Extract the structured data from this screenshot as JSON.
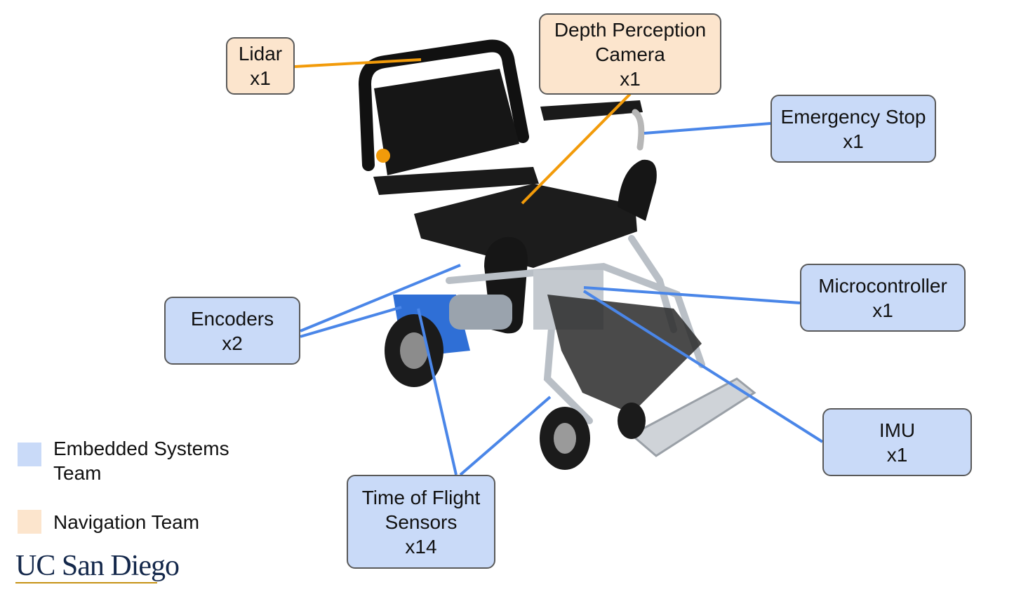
{
  "colors": {
    "embedded_fill": "#c9daf8",
    "navigation_fill": "#fce5cd",
    "embedded_line": "#4a86e8",
    "navigation_line": "#f29b0a",
    "border": "#595959",
    "logo": "#14284b",
    "logo_accent": "#c69214"
  },
  "callouts": {
    "lidar": {
      "line1": "Lidar",
      "line2": "x1",
      "team": "navigation"
    },
    "depth_camera": {
      "line1": "Depth Perception",
      "line2": "Camera",
      "line3": "x1",
      "team": "navigation"
    },
    "emergency_stop": {
      "line1": "Emergency Stop",
      "line2": "x1",
      "team": "embedded"
    },
    "microcontroller": {
      "line1": "Microcontroller",
      "line2": "x1",
      "team": "embedded"
    },
    "imu": {
      "line1": "IMU",
      "line2": "x1",
      "team": "embedded"
    },
    "time_of_flight": {
      "line1": "Time of Flight",
      "line2": "Sensors",
      "line3": "x14",
      "team": "embedded"
    },
    "encoders": {
      "line1": "Encoders",
      "line2": "x2",
      "team": "embedded"
    }
  },
  "legend": {
    "embedded_line1": "Embedded Systems",
    "embedded_line2": "Team",
    "navigation": "Navigation Team"
  },
  "logo": {
    "text": "UC San Diego"
  },
  "photo": {
    "subject": "powered wheelchair with sensors"
  }
}
